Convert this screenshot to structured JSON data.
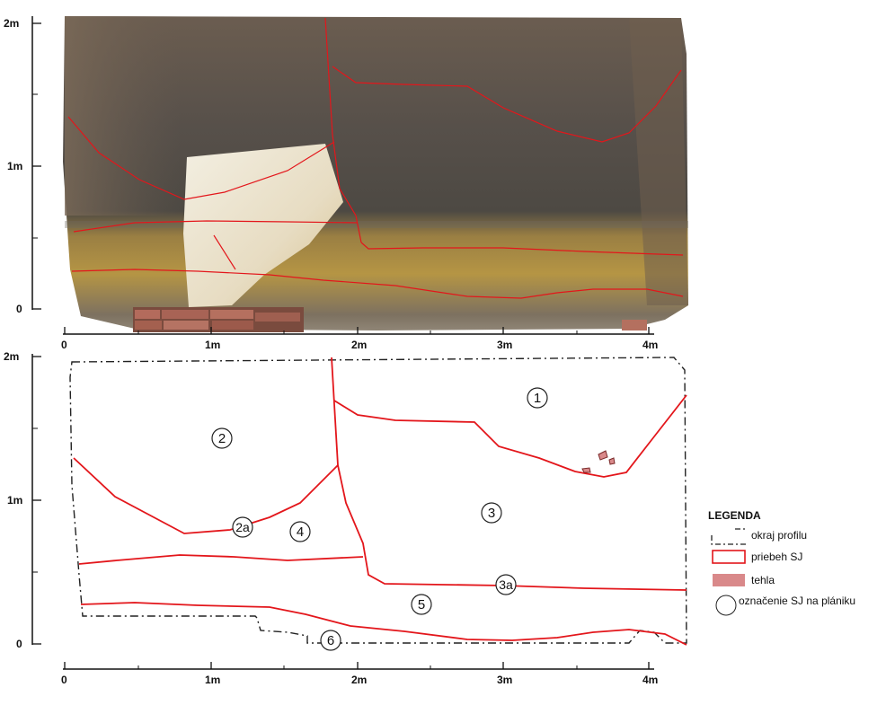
{
  "photo_axis": {
    "y_ticks": [
      "2m",
      "1m",
      "0"
    ],
    "x_ticks": [
      "0",
      "1m",
      "2m",
      "3m",
      "4m"
    ]
  },
  "plan_axis": {
    "y_ticks": [
      "2m",
      "1m",
      "0"
    ],
    "x_ticks": [
      "0",
      "1m",
      "2m",
      "3m",
      "4m"
    ]
  },
  "sj_labels": [
    "1",
    "2",
    "2a",
    "3",
    "3a",
    "4",
    "5",
    "6"
  ],
  "legend": {
    "title": "LEGENDA",
    "items": [
      {
        "label": "okraj profilu"
      },
      {
        "label": "priebeh SJ"
      },
      {
        "label": "tehla"
      },
      {
        "label": "označenie SJ na plániku"
      }
    ]
  },
  "colors": {
    "sj_line": "#e3161b",
    "brick_fill": "#d9898a",
    "outline": "#222222",
    "soil_dark": "#5a4e44",
    "soil_yellow": "#b59544",
    "limestone": "#e9e1cf"
  }
}
